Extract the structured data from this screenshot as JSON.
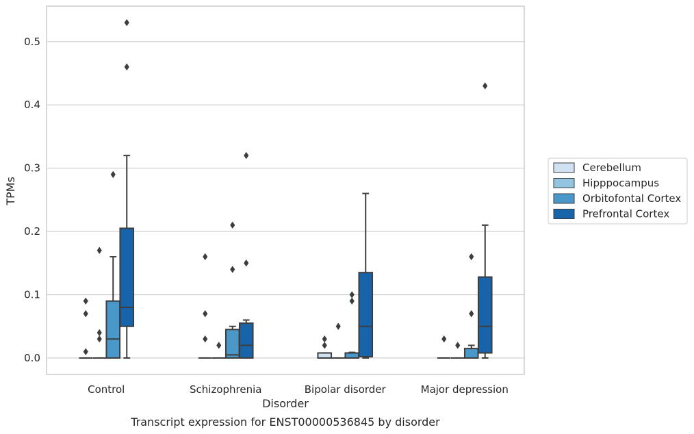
{
  "caption": "Transcript expression for ENST00000536845 by disorder",
  "chart_data": {
    "type": "box",
    "title": "",
    "xlabel": "Disorder",
    "ylabel": "TPMs",
    "ylim": [
      -0.026,
      0.556
    ],
    "yticks": [
      0.0,
      0.1,
      0.2,
      0.3,
      0.4,
      0.5
    ],
    "ytick_labels": [
      "0.0",
      "0.1",
      "0.2",
      "0.3",
      "0.4",
      "0.5"
    ],
    "grid": "horizontal",
    "legend_position": "right",
    "categories": [
      "Control",
      "Schizophrenia",
      "Bipolar disorder",
      "Major depression"
    ],
    "series": [
      {
        "name": "Cerebellum",
        "color": "#d0e1f2",
        "boxes": [
          {
            "q1": 0.0,
            "median": 0.0,
            "q3": 0.0,
            "whislo": 0.0,
            "whishi": 0.0,
            "fliers": [
              0.09,
              0.07,
              0.01
            ]
          },
          {
            "q1": 0.0,
            "median": 0.0,
            "q3": 0.0,
            "whislo": 0.0,
            "whishi": 0.0,
            "fliers": [
              0.16,
              0.07,
              0.03
            ]
          },
          {
            "q1": 0.0,
            "median": 0.0,
            "q3": 0.008,
            "whislo": 0.0,
            "whishi": 0.008,
            "fliers": [
              0.03,
              0.02
            ]
          },
          {
            "q1": 0.0,
            "median": 0.0,
            "q3": 0.0,
            "whislo": 0.0,
            "whishi": 0.0,
            "fliers": [
              0.03
            ]
          }
        ]
      },
      {
        "name": "Hipppocampus",
        "color": "#94c4df",
        "boxes": [
          {
            "q1": 0.0,
            "median": 0.0,
            "q3": 0.0,
            "whislo": 0.0,
            "whishi": 0.0,
            "fliers": [
              0.17,
              0.04,
              0.03
            ]
          },
          {
            "q1": 0.0,
            "median": 0.0,
            "q3": 0.0,
            "whislo": 0.0,
            "whishi": 0.0,
            "fliers": [
              0.02
            ]
          },
          {
            "q1": 0.0,
            "median": 0.0,
            "q3": 0.0,
            "whislo": 0.0,
            "whishi": 0.0,
            "fliers": [
              0.05
            ]
          },
          {
            "q1": 0.0,
            "median": 0.0,
            "q3": 0.0,
            "whislo": 0.0,
            "whishi": 0.0,
            "fliers": [
              0.02
            ]
          }
        ]
      },
      {
        "name": "Orbitofontal Cortex",
        "color": "#4a98c9",
        "boxes": [
          {
            "q1": 0.0,
            "median": 0.03,
            "q3": 0.09,
            "whislo": 0.0,
            "whishi": 0.16,
            "fliers": [
              0.29
            ]
          },
          {
            "q1": 0.0,
            "median": 0.005,
            "q3": 0.045,
            "whislo": 0.0,
            "whishi": 0.05,
            "fliers": [
              0.21,
              0.14
            ]
          },
          {
            "q1": 0.0,
            "median": 0.0,
            "q3": 0.008,
            "whislo": 0.0,
            "whishi": 0.009,
            "fliers": [
              0.1,
              0.09
            ]
          },
          {
            "q1": 0.0,
            "median": 0.0,
            "q3": 0.015,
            "whislo": 0.0,
            "whishi": 0.02,
            "fliers": [
              0.16,
              0.07
            ]
          }
        ]
      },
      {
        "name": "Prefrontal Cortex",
        "color": "#1764ab",
        "boxes": [
          {
            "q1": 0.05,
            "median": 0.08,
            "q3": 0.205,
            "whislo": 0.0,
            "whishi": 0.32,
            "fliers": [
              0.53,
              0.46
            ]
          },
          {
            "q1": 0.0,
            "median": 0.02,
            "q3": 0.055,
            "whislo": 0.0,
            "whishi": 0.06,
            "fliers": [
              0.32,
              0.15
            ]
          },
          {
            "q1": 0.002,
            "median": 0.05,
            "q3": 0.135,
            "whislo": 0.0,
            "whishi": 0.26,
            "fliers": []
          },
          {
            "q1": 0.008,
            "median": 0.05,
            "q3": 0.128,
            "whislo": 0.0,
            "whishi": 0.21,
            "fliers": [
              0.43
            ]
          }
        ]
      }
    ]
  }
}
